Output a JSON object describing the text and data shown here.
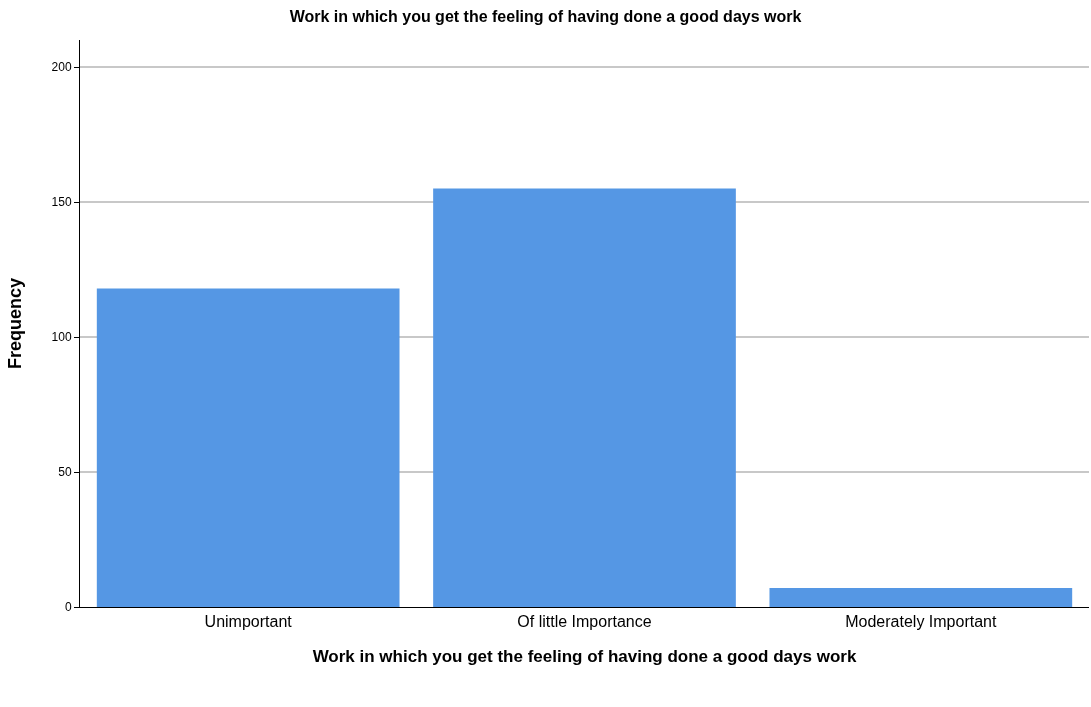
{
  "chart_data": {
    "type": "bar",
    "title": "Work in which you get the feeling of having done a good days work",
    "xlabel": "Work in which you get the feeling of having done a good days work",
    "ylabel": "Frequency",
    "categories": [
      "Unimportant",
      "Of little Importance",
      "Moderately Important"
    ],
    "values": [
      118,
      155,
      7
    ],
    "color": "#5597e4",
    "ylim": [
      0,
      210
    ],
    "yticks": [
      0,
      50,
      100,
      150,
      200
    ],
    "grid": "y"
  }
}
